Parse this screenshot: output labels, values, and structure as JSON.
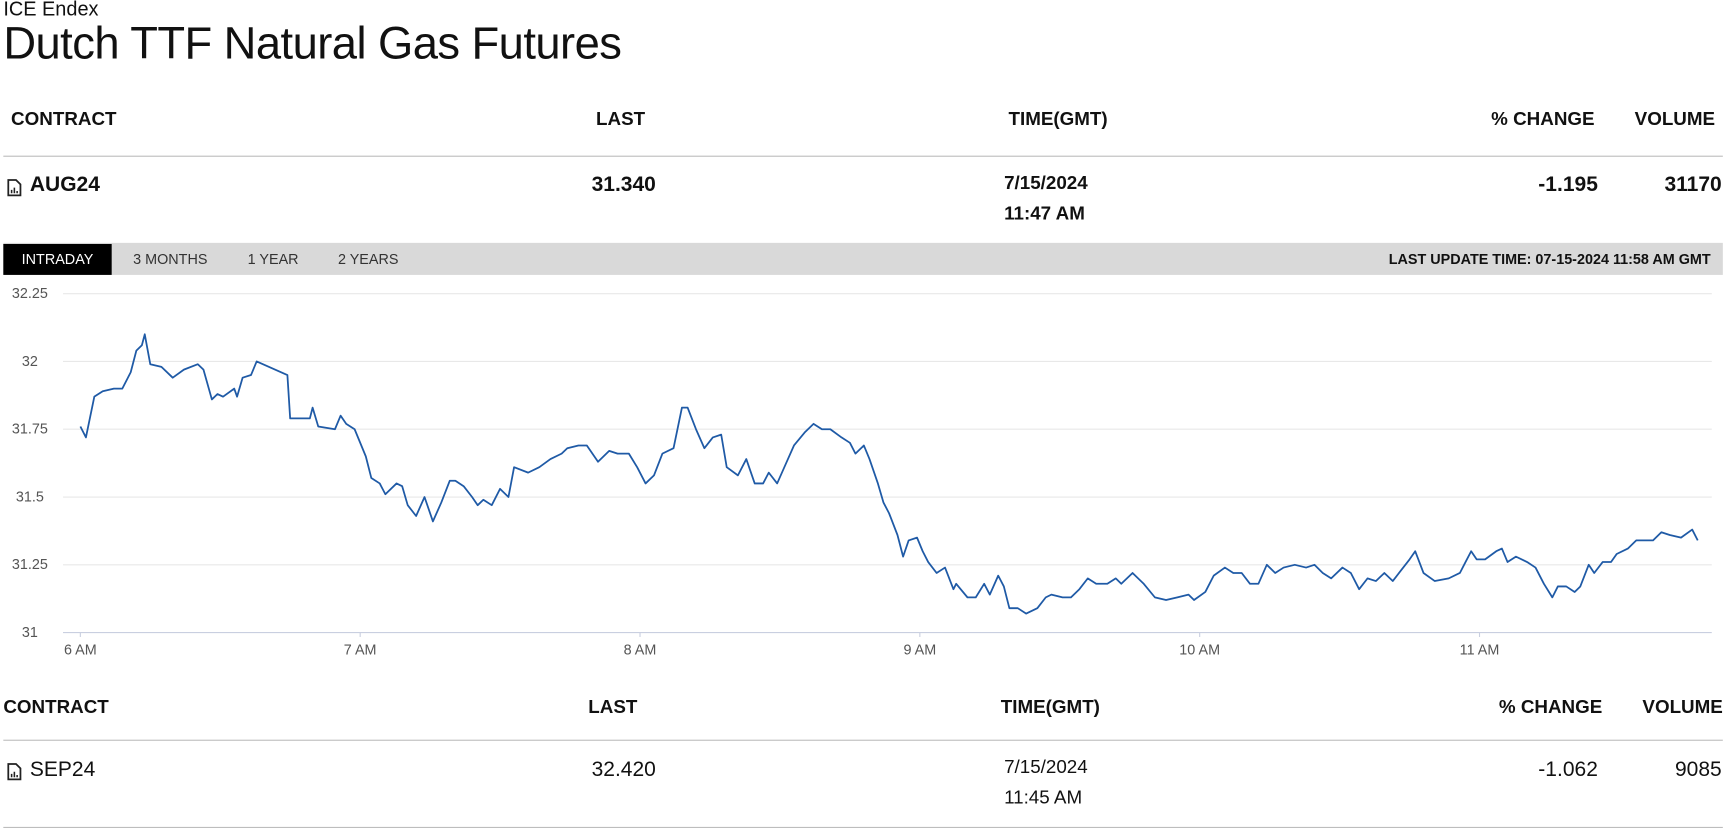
{
  "header": {
    "exchange": "ICE Endex",
    "title": "Dutch TTF Natural Gas Futures"
  },
  "table_top": {
    "columns": [
      "CONTRACT",
      "LAST",
      "TIME(GMT)",
      "% CHANGE",
      "VOLUME"
    ],
    "row": {
      "contract": "AUG24",
      "last": "31.340",
      "date": "7/15/2024",
      "time": "11:47 AM",
      "change": "-1.195",
      "volume": "31170"
    }
  },
  "tabs": [
    "INTRADAY",
    "3 MONTHS",
    "1 YEAR",
    "2 YEARS"
  ],
  "last_update": "LAST UPDATE TIME: 07-15-2024 11:58 AM GMT",
  "chart_data": {
    "type": "line",
    "color": "#1f5aa6",
    "grid": true,
    "xlim": [
      5.95,
      11.83
    ],
    "ylim": [
      31,
      32.25
    ],
    "xticks": [
      {
        "value": 6,
        "label": "6 AM"
      },
      {
        "value": 7,
        "label": "7 AM"
      },
      {
        "value": 8,
        "label": "8 AM"
      },
      {
        "value": 9,
        "label": "9 AM"
      },
      {
        "value": 10,
        "label": "10 AM"
      },
      {
        "value": 11,
        "label": "11 AM"
      }
    ],
    "yticks": [
      31,
      31.25,
      31.5,
      31.75,
      32,
      32.25
    ],
    "x": [
      6.0,
      6.02,
      6.05,
      6.08,
      6.12,
      6.15,
      6.18,
      6.2,
      6.22,
      6.23,
      6.25,
      6.29,
      6.33,
      6.37,
      6.42,
      6.44,
      6.47,
      6.49,
      6.51,
      6.55,
      6.56,
      6.58,
      6.61,
      6.63,
      6.74,
      6.75,
      6.82,
      6.83,
      6.85,
      6.91,
      6.93,
      6.95,
      6.98,
      7.02,
      7.04,
      7.07,
      7.09,
      7.13,
      7.15,
      7.17,
      7.2,
      7.23,
      7.26,
      7.29,
      7.32,
      7.34,
      7.37,
      7.4,
      7.42,
      7.44,
      7.47,
      7.5,
      7.53,
      7.55,
      7.6,
      7.64,
      7.68,
      7.72,
      7.74,
      7.78,
      7.81,
      7.85,
      7.89,
      7.92,
      7.96,
      7.99,
      8.02,
      8.05,
      8.08,
      8.12,
      8.15,
      8.17,
      8.2,
      8.23,
      8.26,
      8.29,
      8.31,
      8.35,
      8.38,
      8.41,
      8.44,
      8.46,
      8.49,
      8.52,
      8.55,
      8.59,
      8.62,
      8.65,
      8.68,
      8.72,
      8.75,
      8.77,
      8.8,
      8.82,
      8.85,
      8.87,
      8.89,
      8.92,
      8.94,
      8.96,
      8.99,
      9.01,
      9.03,
      9.06,
      9.09,
      9.12,
      9.13,
      9.17,
      9.2,
      9.23,
      9.25,
      9.28,
      9.3,
      9.32,
      9.35,
      9.38,
      9.42,
      9.45,
      9.47,
      9.51,
      9.54,
      9.57,
      9.6,
      9.63,
      9.67,
      9.7,
      9.72,
      9.76,
      9.8,
      9.84,
      9.88,
      9.92,
      9.96,
      9.98,
      10.02,
      10.05,
      10.09,
      10.12,
      10.15,
      10.18,
      10.21,
      10.24,
      10.27,
      10.3,
      10.34,
      10.38,
      10.41,
      10.44,
      10.47,
      10.51,
      10.54,
      10.57,
      10.6,
      10.63,
      10.66,
      10.69,
      10.72,
      10.75,
      10.77,
      10.8,
      10.84,
      10.89,
      10.93,
      10.95,
      10.97,
      10.99,
      11.02,
      11.06,
      11.08,
      11.1,
      11.13,
      11.17,
      11.2,
      11.23,
      11.26,
      11.28,
      11.31,
      11.34,
      11.36,
      11.39,
      11.41,
      11.44,
      11.47,
      11.49,
      11.53,
      11.56,
      11.59,
      11.62,
      11.65,
      11.68,
      11.72,
      11.76,
      11.78
    ],
    "values": [
      31.76,
      31.72,
      31.87,
      31.89,
      31.9,
      31.9,
      31.96,
      32.04,
      32.06,
      32.1,
      31.99,
      31.98,
      31.94,
      31.97,
      31.99,
      31.97,
      31.86,
      31.88,
      31.87,
      31.9,
      31.87,
      31.94,
      31.95,
      32.0,
      31.95,
      31.79,
      31.79,
      31.83,
      31.76,
      31.75,
      31.8,
      31.77,
      31.75,
      31.65,
      31.57,
      31.55,
      31.51,
      31.55,
      31.54,
      31.47,
      31.43,
      31.5,
      31.41,
      31.48,
      31.56,
      31.56,
      31.54,
      31.5,
      31.47,
      31.49,
      31.47,
      31.53,
      31.5,
      31.61,
      31.59,
      31.61,
      31.64,
      31.66,
      31.68,
      31.69,
      31.69,
      31.63,
      31.67,
      31.66,
      31.66,
      31.61,
      31.55,
      31.58,
      31.66,
      31.68,
      31.83,
      31.83,
      31.75,
      31.68,
      31.72,
      31.73,
      31.61,
      31.58,
      31.64,
      31.55,
      31.55,
      31.59,
      31.55,
      31.62,
      31.69,
      31.74,
      31.77,
      31.75,
      31.75,
      31.72,
      31.7,
      31.66,
      31.69,
      31.64,
      31.55,
      31.48,
      31.44,
      31.36,
      31.28,
      31.34,
      31.35,
      31.3,
      31.26,
      31.22,
      31.24,
      31.16,
      31.18,
      31.13,
      31.13,
      31.18,
      31.14,
      31.21,
      31.17,
      31.09,
      31.09,
      31.07,
      31.09,
      31.13,
      31.14,
      31.13,
      31.13,
      31.16,
      31.2,
      31.18,
      31.18,
      31.2,
      31.18,
      31.22,
      31.18,
      31.13,
      31.12,
      31.13,
      31.14,
      31.12,
      31.15,
      31.21,
      31.24,
      31.22,
      31.22,
      31.18,
      31.18,
      31.25,
      31.22,
      31.24,
      31.25,
      31.24,
      31.25,
      31.22,
      31.2,
      31.24,
      31.22,
      31.16,
      31.2,
      31.19,
      31.22,
      31.19,
      31.23,
      31.27,
      31.3,
      31.22,
      31.19,
      31.2,
      31.22,
      31.26,
      31.3,
      31.27,
      31.27,
      31.3,
      31.31,
      31.26,
      31.28,
      31.26,
      31.24,
      31.18,
      31.13,
      31.17,
      31.17,
      31.15,
      31.17,
      31.25,
      31.22,
      31.26,
      31.26,
      31.29,
      31.31,
      31.34,
      31.34,
      31.34,
      31.37,
      31.36,
      31.35,
      31.38,
      31.34
    ]
  },
  "table_bottom": {
    "columns": [
      "CONTRACT",
      "LAST",
      "TIME(GMT)",
      "% CHANGE",
      "VOLUME"
    ],
    "row": {
      "contract": "SEP24",
      "last": "32.420",
      "date": "7/15/2024",
      "time": "11:45 AM",
      "change": "-1.062",
      "volume": "9085"
    }
  }
}
